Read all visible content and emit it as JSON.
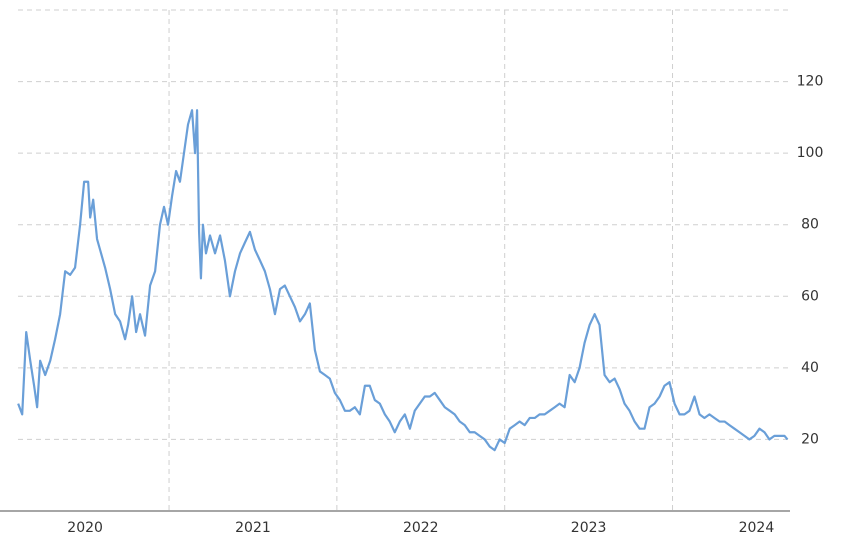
{
  "chart_data": {
    "type": "line",
    "xlim": [
      2020.1,
      2024.7
    ],
    "xticks": [
      {
        "value": 2020.5,
        "label": "2020"
      },
      {
        "value": 2021.5,
        "label": "2021"
      },
      {
        "value": 2022.5,
        "label": "2022"
      },
      {
        "value": 2023.5,
        "label": "2023"
      },
      {
        "value": 2024.5,
        "label": "2024"
      }
    ],
    "xgrid": [
      2021,
      2022,
      2023,
      2024
    ],
    "ylim": [
      0,
      140
    ],
    "yticks": [
      20,
      40,
      60,
      80,
      100,
      120
    ],
    "grid": true,
    "series": [
      {
        "color": "#6a9fd8",
        "x": [
          2020.101,
          2020.125,
          2020.149,
          2020.173,
          2020.196,
          2020.214,
          2020.232,
          2020.262,
          2020.292,
          2020.321,
          2020.351,
          2020.381,
          2020.411,
          2020.44,
          2020.47,
          2020.494,
          2020.518,
          2020.53,
          2020.548,
          2020.571,
          2020.589,
          2020.619,
          2020.649,
          2020.679,
          2020.708,
          2020.738,
          2020.756,
          2020.78,
          2020.804,
          2020.827,
          2020.857,
          2020.887,
          2020.917,
          2020.946,
          2020.97,
          2020.994,
          2021.018,
          2021.042,
          2021.065,
          2021.089,
          2021.113,
          2021.137,
          2021.155,
          2021.167,
          2021.179,
          2021.19,
          2021.202,
          2021.22,
          2021.244,
          2021.274,
          2021.304,
          2021.333,
          2021.363,
          2021.393,
          2021.423,
          2021.452,
          2021.482,
          2021.512,
          2021.542,
          2021.571,
          2021.601,
          2021.631,
          2021.661,
          2021.69,
          2021.72,
          2021.75,
          2021.78,
          2021.81,
          2021.839,
          2021.869,
          2021.899,
          2021.929,
          2021.958,
          2021.988,
          2022.018,
          2022.048,
          2022.077,
          2022.107,
          2022.137,
          2022.167,
          2022.196,
          2022.226,
          2022.256,
          2022.286,
          2022.315,
          2022.345,
          2022.375,
          2022.405,
          2022.435,
          2022.464,
          2022.494,
          2022.524,
          2022.554,
          2022.583,
          2022.613,
          2022.643,
          2022.673,
          2022.702,
          2022.732,
          2022.762,
          2022.792,
          2022.821,
          2022.851,
          2022.881,
          2022.911,
          2022.94,
          2022.97,
          2023.0,
          2023.03,
          2023.06,
          2023.089,
          2023.119,
          2023.149,
          2023.179,
          2023.208,
          2023.238,
          2023.268,
          2023.298,
          2023.327,
          2023.357,
          2023.387,
          2023.417,
          2023.446,
          2023.476,
          2023.506,
          2023.536,
          2023.565,
          2023.595,
          2023.625,
          2023.655,
          2023.685,
          2023.714,
          2023.744,
          2023.774,
          2023.804,
          2023.833,
          2023.863,
          2023.893,
          2023.923,
          2023.952,
          2023.982,
          2024.012,
          2024.042,
          2024.071,
          2024.101,
          2024.131,
          2024.161,
          2024.19,
          2024.22,
          2024.25,
          2024.28,
          2024.31,
          2024.339,
          2024.369,
          2024.399,
          2024.429,
          2024.458,
          2024.488,
          2024.518,
          2024.548,
          2024.577,
          2024.607,
          2024.637,
          2024.667,
          2024.685
        ],
        "values": [
          30,
          27,
          50,
          42,
          35,
          29,
          42,
          38,
          42,
          48,
          55,
          67,
          66,
          68,
          80,
          92,
          92,
          82,
          87,
          76,
          73,
          68,
          62,
          55,
          53,
          48,
          52,
          60,
          50,
          55,
          49,
          63,
          67,
          80,
          85,
          80,
          88,
          95,
          92,
          100,
          108,
          112,
          100,
          112,
          78,
          65,
          80,
          72,
          77,
          72,
          77,
          70,
          60,
          67,
          72,
          75,
          78,
          73,
          70,
          67,
          62,
          55,
          62,
          63,
          60,
          57,
          53,
          55,
          58,
          45,
          39,
          38,
          37,
          33,
          31,
          28,
          28,
          29,
          27,
          35,
          35,
          31,
          30,
          27,
          25,
          22,
          25,
          27,
          23,
          28,
          30,
          32,
          32,
          33,
          31,
          29,
          28,
          27,
          25,
          24,
          22,
          22,
          21,
          20,
          18,
          17,
          20,
          19,
          23,
          24,
          25,
          24,
          26,
          26,
          27,
          27,
          28,
          29,
          30,
          29,
          38,
          36,
          40,
          47,
          52,
          55,
          52,
          38,
          36,
          37,
          34,
          30,
          28,
          25,
          23,
          23,
          29,
          30,
          32,
          35,
          36,
          30,
          27,
          27,
          28,
          32,
          27,
          26,
          27,
          26,
          25,
          25,
          24,
          23,
          22,
          21,
          20,
          21,
          23,
          22,
          20,
          21,
          21,
          21,
          20
        ]
      }
    ]
  }
}
